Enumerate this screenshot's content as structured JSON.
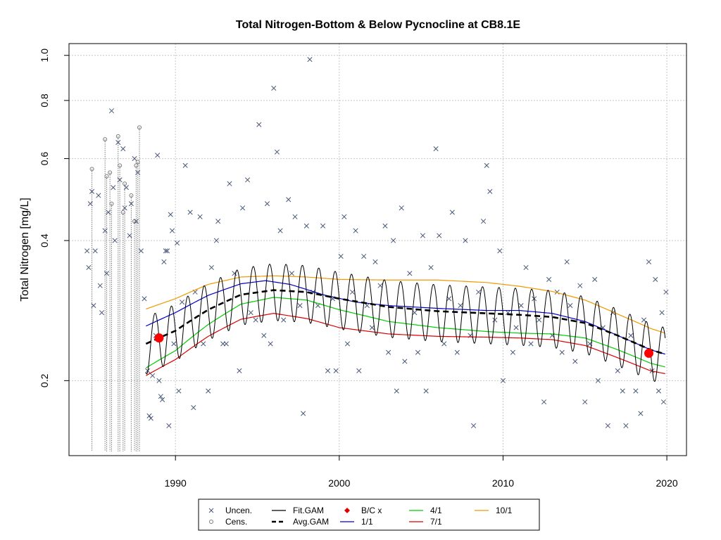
{
  "chart_data": {
    "type": "scatter",
    "title": "Total Nitrogen-Bottom & Below Pycnocline at CB8.1E",
    "xlabel": "",
    "ylabel": "Total Nitrogen [mg/L]",
    "y_scale": "log",
    "xlim": [
      1983.5,
      2021.2
    ],
    "ylim": [
      0.138,
      1.06
    ],
    "x_ticks": [
      "1990",
      "2000",
      "2010",
      "2020"
    ],
    "y_ticks": [
      "0.2",
      "0.4",
      "0.6",
      "0.8",
      "1.0"
    ],
    "grid": true,
    "legend_position": "bottom",
    "legend": [
      {
        "label": "Uncen.",
        "symbol": "x",
        "color": "#4a5878"
      },
      {
        "label": "Cens.",
        "symbol": "o",
        "color": "#7a7a7a"
      },
      {
        "label": "Fit.GAM",
        "symbol": "line",
        "color": "#000000"
      },
      {
        "label": "Avg.GAM",
        "symbol": "dashed",
        "color": "#000000"
      },
      {
        "label": "B/C x",
        "symbol": "diamond",
        "color": "#e00000"
      },
      {
        "label": "1/1",
        "symbol": "line",
        "color": "#0000cc"
      },
      {
        "label": "4/1",
        "symbol": "line",
        "color": "#00cc00"
      },
      {
        "label": "7/1",
        "symbol": "line",
        "color": "#dd0000"
      },
      {
        "label": "10/1",
        "symbol": "line",
        "color": "#ee9900"
      }
    ],
    "colors": {
      "uncen": "#4a5878",
      "cens": "#7a7a7a",
      "fit": "#000000",
      "avg": "#000000",
      "bc": "#ff0000",
      "d1_1": "#0000cc",
      "d4_1": "#00cc00",
      "d7_1": "#dd0000",
      "d10_1": "#ee9900"
    },
    "baseline_change_points": [
      {
        "x": 1989.0,
        "y": 0.247
      },
      {
        "x": 2018.9,
        "y": 0.229
      }
    ],
    "series": [
      {
        "name": "10/1",
        "x": [
          1988.2,
          1990,
          1992,
          1994,
          1996,
          1998,
          2000,
          2003,
          2006,
          2009,
          2011,
          2013,
          2015,
          2017,
          2019,
          2019.9
        ],
        "y": [
          0.285,
          0.3,
          0.322,
          0.334,
          0.336,
          0.334,
          0.33,
          0.329,
          0.329,
          0.325,
          0.319,
          0.311,
          0.298,
          0.278,
          0.259,
          0.253
        ]
      },
      {
        "name": "1/1",
        "x": [
          1988.2,
          1990,
          1992,
          1994,
          1995.5,
          1997,
          1999,
          2001,
          2003,
          2006,
          2009,
          2011,
          2013,
          2015,
          2017,
          2019,
          2019.9
        ],
        "y": [
          0.262,
          0.28,
          0.305,
          0.323,
          0.328,
          0.322,
          0.306,
          0.295,
          0.29,
          0.286,
          0.283,
          0.283,
          0.279,
          0.268,
          0.25,
          0.233,
          0.228
        ]
      },
      {
        "name": "4/1",
        "x": [
          1988.2,
          1990,
          1992,
          1994,
          1996,
          1998,
          2000,
          2003,
          2006,
          2009,
          2011,
          2013,
          2015,
          2017,
          2019,
          2019.9
        ],
        "y": [
          0.213,
          0.232,
          0.264,
          0.292,
          0.302,
          0.298,
          0.284,
          0.268,
          0.26,
          0.255,
          0.253,
          0.252,
          0.247,
          0.233,
          0.218,
          0.214
        ]
      },
      {
        "name": "7/1",
        "x": [
          1988.2,
          1990,
          1992,
          1994,
          1996,
          1998,
          2000,
          2003,
          2006,
          2009,
          2011,
          2013,
          2015,
          2017,
          2019,
          2019.9
        ],
        "y": [
          0.205,
          0.222,
          0.249,
          0.271,
          0.279,
          0.272,
          0.26,
          0.252,
          0.249,
          0.248,
          0.247,
          0.245,
          0.238,
          0.224,
          0.21,
          0.207
        ]
      },
      {
        "name": "Avg.GAM",
        "x": [
          1988.2,
          1990,
          1992,
          1994,
          1996,
          1998,
          2000,
          2003,
          2006,
          2009,
          2011,
          2013,
          2015,
          2017,
          2019,
          2019.9
        ],
        "y": [
          0.24,
          0.256,
          0.284,
          0.306,
          0.313,
          0.31,
          0.3,
          0.288,
          0.282,
          0.279,
          0.277,
          0.274,
          0.266,
          0.25,
          0.233,
          0.228
        ]
      }
    ],
    "fit_gam": {
      "x_start": 1988.2,
      "x_end": 2019.9,
      "cycles_per_year": 1,
      "peak_month_fraction": 0.75,
      "relative_amplitude": 0.14
    },
    "uncensored_points": [
      {
        "x": 1984.6,
        "y": 0.38
      },
      {
        "x": 1984.7,
        "y": 0.35
      },
      {
        "x": 1984.8,
        "y": 0.48
      },
      {
        "x": 1984.9,
        "y": 0.51
      },
      {
        "x": 1985.0,
        "y": 0.29
      },
      {
        "x": 1985.1,
        "y": 0.38
      },
      {
        "x": 1985.3,
        "y": 0.5
      },
      {
        "x": 1985.4,
        "y": 0.32
      },
      {
        "x": 1985.5,
        "y": 0.28
      },
      {
        "x": 1985.7,
        "y": 0.42
      },
      {
        "x": 1985.8,
        "y": 0.34
      },
      {
        "x": 1985.9,
        "y": 0.46
      },
      {
        "x": 1986.1,
        "y": 0.76
      },
      {
        "x": 1986.2,
        "y": 0.52
      },
      {
        "x": 1986.3,
        "y": 0.4
      },
      {
        "x": 1986.5,
        "y": 0.65
      },
      {
        "x": 1986.6,
        "y": 0.54
      },
      {
        "x": 1986.8,
        "y": 0.63
      },
      {
        "x": 1986.9,
        "y": 0.47
      },
      {
        "x": 1987.0,
        "y": 0.52
      },
      {
        "x": 1987.2,
        "y": 0.41
      },
      {
        "x": 1987.3,
        "y": 0.48
      },
      {
        "x": 1987.5,
        "y": 0.6
      },
      {
        "x": 1987.6,
        "y": 0.44
      },
      {
        "x": 1987.7,
        "y": 0.56
      },
      {
        "x": 1987.9,
        "y": 0.38
      },
      {
        "x": 1988.1,
        "y": 0.3
      },
      {
        "x": 1988.3,
        "y": 0.21
      },
      {
        "x": 1988.4,
        "y": 0.168
      },
      {
        "x": 1988.5,
        "y": 0.166
      },
      {
        "x": 1988.6,
        "y": 0.205
      },
      {
        "x": 1988.8,
        "y": 0.25
      },
      {
        "x": 1988.9,
        "y": 0.61
      },
      {
        "x": 1989.0,
        "y": 0.2
      },
      {
        "x": 1989.1,
        "y": 0.185
      },
      {
        "x": 1989.2,
        "y": 0.182
      },
      {
        "x": 1989.3,
        "y": 0.36
      },
      {
        "x": 1989.4,
        "y": 0.38
      },
      {
        "x": 1989.5,
        "y": 0.38
      },
      {
        "x": 1989.6,
        "y": 0.16
      },
      {
        "x": 1989.7,
        "y": 0.455
      },
      {
        "x": 1989.8,
        "y": 0.42
      },
      {
        "x": 1989.9,
        "y": 0.24
      },
      {
        "x": 1990.1,
        "y": 0.395
      },
      {
        "x": 1990.2,
        "y": 0.19
      },
      {
        "x": 1990.4,
        "y": 0.295
      },
      {
        "x": 1990.6,
        "y": 0.58
      },
      {
        "x": 1990.9,
        "y": 0.46
      },
      {
        "x": 1991.1,
        "y": 0.175
      },
      {
        "x": 1991.2,
        "y": 0.31
      },
      {
        "x": 1991.5,
        "y": 0.45
      },
      {
        "x": 1991.7,
        "y": 0.24
      },
      {
        "x": 1992.0,
        "y": 0.19
      },
      {
        "x": 1992.2,
        "y": 0.35
      },
      {
        "x": 1992.5,
        "y": 0.4
      },
      {
        "x": 1992.6,
        "y": 0.44
      },
      {
        "x": 1992.9,
        "y": 0.24
      },
      {
        "x": 1993.1,
        "y": 0.24
      },
      {
        "x": 1993.3,
        "y": 0.53
      },
      {
        "x": 1993.6,
        "y": 0.34
      },
      {
        "x": 1993.9,
        "y": 0.21
      },
      {
        "x": 1994.1,
        "y": 0.47
      },
      {
        "x": 1994.4,
        "y": 0.54
      },
      {
        "x": 1994.6,
        "y": 0.28
      },
      {
        "x": 1994.9,
        "y": 0.27
      },
      {
        "x": 1995.1,
        "y": 0.71
      },
      {
        "x": 1995.4,
        "y": 0.25
      },
      {
        "x": 1995.6,
        "y": 0.48
      },
      {
        "x": 1995.8,
        "y": 0.24
      },
      {
        "x": 1996.0,
        "y": 0.85
      },
      {
        "x": 1996.2,
        "y": 0.62
      },
      {
        "x": 1996.4,
        "y": 0.42
      },
      {
        "x": 1996.6,
        "y": 0.27
      },
      {
        "x": 1996.9,
        "y": 0.49
      },
      {
        "x": 1997.1,
        "y": 0.34
      },
      {
        "x": 1997.3,
        "y": 0.45
      },
      {
        "x": 1997.6,
        "y": 0.29
      },
      {
        "x": 1997.8,
        "y": 0.17
      },
      {
        "x": 1998.0,
        "y": 0.43
      },
      {
        "x": 1998.2,
        "y": 0.98
      },
      {
        "x": 1998.4,
        "y": 0.31
      },
      {
        "x": 1998.7,
        "y": 0.29
      },
      {
        "x": 1999.0,
        "y": 0.43
      },
      {
        "x": 1999.3,
        "y": 0.21
      },
      {
        "x": 1999.6,
        "y": 0.3
      },
      {
        "x": 1999.8,
        "y": 0.21
      },
      {
        "x": 2000.1,
        "y": 0.37
      },
      {
        "x": 2000.3,
        "y": 0.45
      },
      {
        "x": 2000.5,
        "y": 0.24
      },
      {
        "x": 2000.8,
        "y": 0.31
      },
      {
        "x": 2001.0,
        "y": 0.42
      },
      {
        "x": 2001.2,
        "y": 0.21
      },
      {
        "x": 2001.5,
        "y": 0.37
      },
      {
        "x": 2001.7,
        "y": 0.29
      },
      {
        "x": 2002.0,
        "y": 0.26
      },
      {
        "x": 2002.2,
        "y": 0.36
      },
      {
        "x": 2002.5,
        "y": 0.32
      },
      {
        "x": 2002.8,
        "y": 0.43
      },
      {
        "x": 2003.0,
        "y": 0.23
      },
      {
        "x": 2003.3,
        "y": 0.4
      },
      {
        "x": 2003.5,
        "y": 0.19
      },
      {
        "x": 2003.8,
        "y": 0.47
      },
      {
        "x": 2004.0,
        "y": 0.22
      },
      {
        "x": 2004.3,
        "y": 0.34
      },
      {
        "x": 2004.6,
        "y": 0.28
      },
      {
        "x": 2004.8,
        "y": 0.23
      },
      {
        "x": 2005.1,
        "y": 0.41
      },
      {
        "x": 2005.3,
        "y": 0.19
      },
      {
        "x": 2005.6,
        "y": 0.35
      },
      {
        "x": 2005.9,
        "y": 0.63
      },
      {
        "x": 2006.1,
        "y": 0.41
      },
      {
        "x": 2006.4,
        "y": 0.24
      },
      {
        "x": 2006.7,
        "y": 0.3
      },
      {
        "x": 2006.9,
        "y": 0.46
      },
      {
        "x": 2007.2,
        "y": 0.23
      },
      {
        "x": 2007.4,
        "y": 0.29
      },
      {
        "x": 2007.7,
        "y": 0.4
      },
      {
        "x": 2008.0,
        "y": 0.25
      },
      {
        "x": 2008.2,
        "y": 0.16
      },
      {
        "x": 2008.5,
        "y": 0.31
      },
      {
        "x": 2008.8,
        "y": 0.44
      },
      {
        "x": 2009.0,
        "y": 0.58
      },
      {
        "x": 2009.2,
        "y": 0.51
      },
      {
        "x": 2009.5,
        "y": 0.27
      },
      {
        "x": 2009.8,
        "y": 0.38
      },
      {
        "x": 2010.0,
        "y": 0.2
      },
      {
        "x": 2010.3,
        "y": 0.28
      },
      {
        "x": 2010.6,
        "y": 0.23
      },
      {
        "x": 2010.8,
        "y": 0.26
      },
      {
        "x": 2011.1,
        "y": 0.29
      },
      {
        "x": 2011.4,
        "y": 0.35
      },
      {
        "x": 2011.7,
        "y": 0.24
      },
      {
        "x": 2011.9,
        "y": 0.3
      },
      {
        "x": 2012.2,
        "y": 0.27
      },
      {
        "x": 2012.5,
        "y": 0.18
      },
      {
        "x": 2012.8,
        "y": 0.33
      },
      {
        "x": 2013.0,
        "y": 0.25
      },
      {
        "x": 2013.3,
        "y": 0.31
      },
      {
        "x": 2013.6,
        "y": 0.23
      },
      {
        "x": 2013.9,
        "y": 0.36
      },
      {
        "x": 2014.1,
        "y": 0.29
      },
      {
        "x": 2014.4,
        "y": 0.22
      },
      {
        "x": 2014.7,
        "y": 0.32
      },
      {
        "x": 2015.0,
        "y": 0.18
      },
      {
        "x": 2015.3,
        "y": 0.24
      },
      {
        "x": 2015.6,
        "y": 0.33
      },
      {
        "x": 2015.8,
        "y": 0.2
      },
      {
        "x": 2016.1,
        "y": 0.26
      },
      {
        "x": 2016.4,
        "y": 0.16
      },
      {
        "x": 2016.7,
        "y": 0.28
      },
      {
        "x": 2017.0,
        "y": 0.21
      },
      {
        "x": 2017.3,
        "y": 0.19
      },
      {
        "x": 2017.5,
        "y": 0.16
      },
      {
        "x": 2017.8,
        "y": 0.25
      },
      {
        "x": 2018.1,
        "y": 0.19
      },
      {
        "x": 2018.4,
        "y": 0.17
      },
      {
        "x": 2018.6,
        "y": 0.27
      },
      {
        "x": 2018.9,
        "y": 0.36
      },
      {
        "x": 2019.1,
        "y": 0.21
      },
      {
        "x": 2019.3,
        "y": 0.33
      },
      {
        "x": 2019.5,
        "y": 0.19
      },
      {
        "x": 2019.7,
        "y": 0.28
      },
      {
        "x": 2019.8,
        "y": 0.18
      },
      {
        "x": 2019.95,
        "y": 0.31
      }
    ],
    "censored_points": [
      {
        "x": 1984.9,
        "y": 0.57
      },
      {
        "x": 1985.7,
        "y": 0.66
      },
      {
        "x": 1985.8,
        "y": 0.55
      },
      {
        "x": 1986.0,
        "y": 0.56
      },
      {
        "x": 1986.1,
        "y": 0.48
      },
      {
        "x": 1986.5,
        "y": 0.67
      },
      {
        "x": 1986.6,
        "y": 0.58
      },
      {
        "x": 1986.8,
        "y": 0.46
      },
      {
        "x": 1986.9,
        "y": 0.53
      },
      {
        "x": 1987.3,
        "y": 0.5
      },
      {
        "x": 1987.5,
        "y": 0.44
      },
      {
        "x": 1987.6,
        "y": 0.58
      },
      {
        "x": 1987.7,
        "y": 0.59
      },
      {
        "x": 1987.8,
        "y": 0.7
      }
    ]
  }
}
